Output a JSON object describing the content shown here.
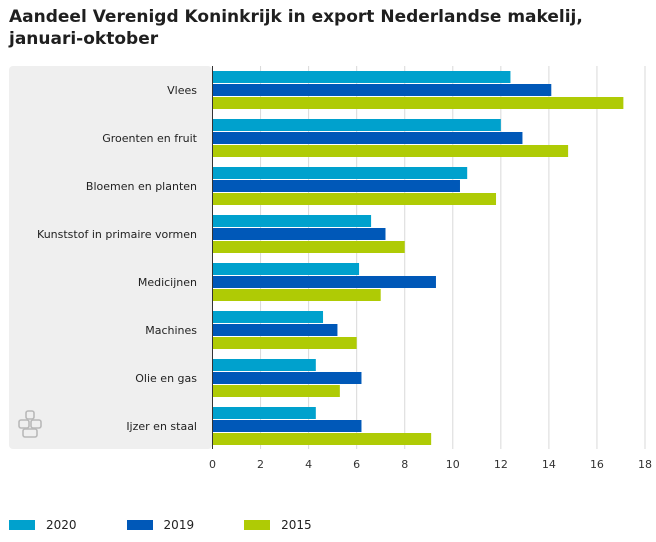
{
  "title_line1": "Aandeel Verenigd Koninkrijk in export Nederlandse makelij,",
  "title_line2": "januari-oktober",
  "colors": {
    "2020": "#00a1cd",
    "2019": "#0058b8",
    "2015": "#afcb05",
    "panel": "#efefef",
    "grid": "#d9d9d9"
  },
  "logo_icon": "cbs-logo-icon",
  "chart_data": {
    "type": "bar",
    "orientation": "horizontal",
    "categories": [
      "Vlees",
      "Groenten en fruit",
      "Bloemen en planten",
      "Kunststof in primaire vormen",
      "Medicijnen",
      "Machines",
      "Olie en gas",
      "Ijzer en staal"
    ],
    "series": [
      {
        "name": "2020",
        "values": [
          12.4,
          12.0,
          10.6,
          6.6,
          6.1,
          4.6,
          4.3,
          4.3
        ]
      },
      {
        "name": "2019",
        "values": [
          14.1,
          12.9,
          10.3,
          7.2,
          9.3,
          5.2,
          6.2,
          6.2
        ]
      },
      {
        "name": "2015",
        "values": [
          17.1,
          14.8,
          11.8,
          8.0,
          7.0,
          6.0,
          5.3,
          9.1
        ]
      }
    ],
    "xlim": [
      0,
      18
    ],
    "xticks": [
      "0",
      "2",
      "4",
      "6",
      "8",
      "10",
      "12",
      "14",
      "16",
      "18"
    ],
    "grid": true,
    "legend_position": "bottom-left"
  }
}
